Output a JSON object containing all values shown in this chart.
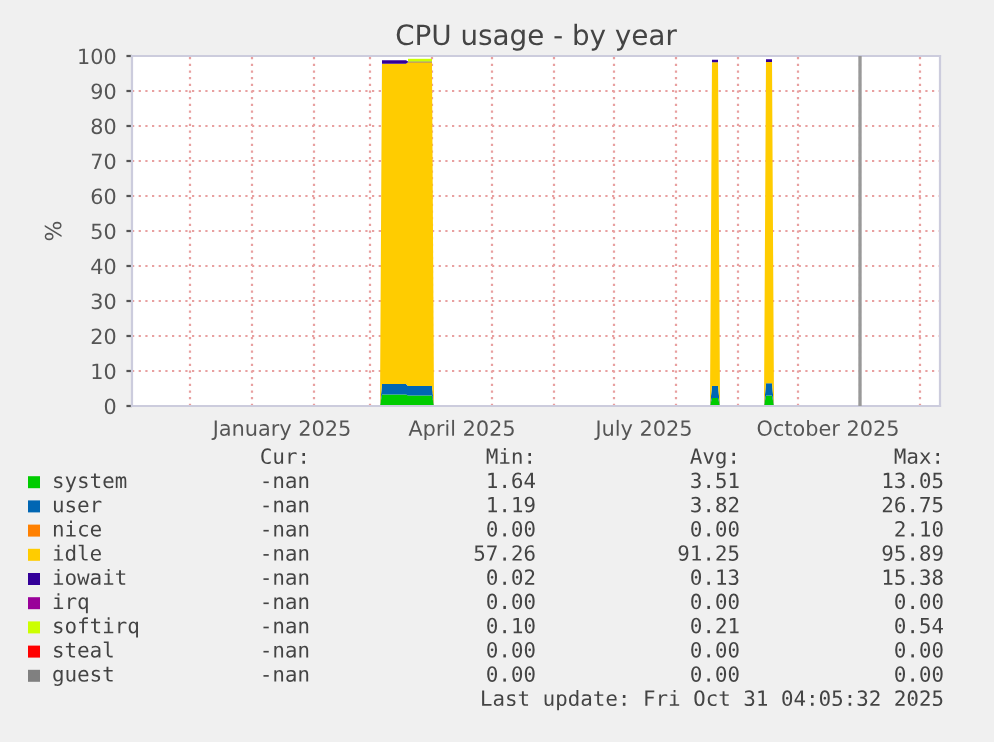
{
  "chart_data": {
    "type": "area",
    "stacked": true,
    "title": "CPU usage - by year",
    "ylabel": "%",
    "x": [
      "2025-03-06",
      "2025-03-07",
      "2025-03-19",
      "2025-03-20",
      "2025-04-01",
      "2025-04-02",
      "2025-08-18",
      "2025-08-19",
      "2025-08-20T12:00",
      "2025-08-22",
      "2025-08-23",
      "2025-09-14",
      "2025-09-15",
      "2025-09-16T12:00",
      "2025-09-18",
      "2025-09-19"
    ],
    "series": [
      {
        "name": "system",
        "color": "#00cc00",
        "values": [
          0,
          3.3,
          3.3,
          3.0,
          3.0,
          0,
          0,
          2.3,
          2.3,
          2.3,
          0,
          0,
          3.0,
          3.0,
          3.0,
          0
        ]
      },
      {
        "name": "user",
        "color": "#0066b3",
        "values": [
          0,
          3.0,
          3.0,
          2.7,
          2.7,
          0,
          0,
          3.4,
          3.4,
          3.4,
          0,
          0,
          3.5,
          3.5,
          3.5,
          0
        ]
      },
      {
        "name": "nice",
        "color": "#ff8000",
        "values": [
          null,
          null,
          null,
          null,
          null,
          null,
          null,
          null,
          null,
          null,
          null,
          null,
          null,
          null,
          null,
          null
        ]
      },
      {
        "name": "idle",
        "color": "#ffcc00",
        "values": [
          0,
          91.5,
          91.5,
          92.5,
          92.5,
          0,
          0,
          92.5,
          92.5,
          92.5,
          0,
          0,
          91.8,
          91.8,
          91.8,
          0
        ]
      },
      {
        "name": "iowait",
        "color": "#330099",
        "values": [
          0,
          1.0,
          1.0,
          0.2,
          0.2,
          0,
          0,
          0.7,
          0.7,
          0.7,
          0,
          0,
          0.8,
          0.8,
          0.8,
          0
        ]
      },
      {
        "name": "irq",
        "color": "#990099",
        "values": [
          null,
          null,
          null,
          null,
          null,
          null,
          null,
          null,
          null,
          null,
          null,
          null,
          null,
          null,
          null,
          null
        ]
      },
      {
        "name": "softirq",
        "color": "#ccff00",
        "values": [
          null,
          null,
          null,
          0.8,
          0.8,
          null,
          null,
          null,
          null,
          null,
          null,
          null,
          null,
          null,
          null,
          null
        ]
      },
      {
        "name": "steal",
        "color": "#ff0000",
        "values": [
          null,
          null,
          null,
          null,
          null,
          null,
          null,
          null,
          null,
          null,
          null,
          null,
          null,
          null,
          null,
          null
        ]
      },
      {
        "name": "guest",
        "color": "#808080",
        "values": [
          null,
          null,
          null,
          null,
          null,
          null,
          null,
          null,
          null,
          null,
          null,
          null,
          null,
          null,
          null,
          null
        ]
      }
    ],
    "xlim": [
      "2024-11-02",
      "2025-12-11"
    ],
    "xticks": [
      {
        "value": "2024-12-01",
        "label": null
      },
      {
        "value": "2025-01-01",
        "label": null
      },
      {
        "value": "2025-01-16",
        "label": "January 2025"
      },
      {
        "value": "2025-02-01",
        "label": null
      },
      {
        "value": "2025-03-01",
        "label": null
      },
      {
        "value": "2025-04-01",
        "label": null
      },
      {
        "value": "2025-04-16",
        "label": "April 2025"
      },
      {
        "value": "2025-05-01",
        "label": null
      },
      {
        "value": "2025-06-01",
        "label": null
      },
      {
        "value": "2025-07-01",
        "label": null
      },
      {
        "value": "2025-07-16",
        "label": "July 2025"
      },
      {
        "value": "2025-08-01",
        "label": null
      },
      {
        "value": "2025-09-01",
        "label": null
      },
      {
        "value": "2025-10-01",
        "label": null
      },
      {
        "value": "2025-10-16",
        "label": "October 2025"
      },
      {
        "value": "2025-11-01",
        "label": null
      },
      {
        "value": "2025-12-01",
        "label": null
      }
    ],
    "ylim": [
      0,
      100
    ],
    "yticks": [
      0,
      10,
      20,
      30,
      40,
      50,
      60,
      70,
      80,
      90,
      100
    ],
    "grid": true,
    "legend": "bottom",
    "ref_lines": [
      {
        "axis": "x",
        "value": "2025-11-01",
        "color": "#999999"
      }
    ],
    "annotations": [
      "Cur:",
      "Min:",
      "Avg:",
      "Max:",
      "-nan",
      "1.64",
      "3.51",
      "13.05",
      "-nan",
      "1.19",
      "3.82",
      "26.75",
      "-nan",
      "0.00",
      "0.00",
      "2.10",
      "-nan",
      "57.26",
      "91.25",
      "95.89",
      "-nan",
      "0.02",
      "0.13",
      "15.38",
      "-nan",
      "0.00",
      "0.00",
      "0.00",
      "-nan",
      "0.10",
      "0.21",
      "0.54",
      "-nan",
      "0.00",
      "0.00",
      "0.00",
      "-nan",
      "0.00",
      "0.00",
      "0.00",
      "Last update: Fri Oct 31 04:05:32 2025"
    ]
  }
}
